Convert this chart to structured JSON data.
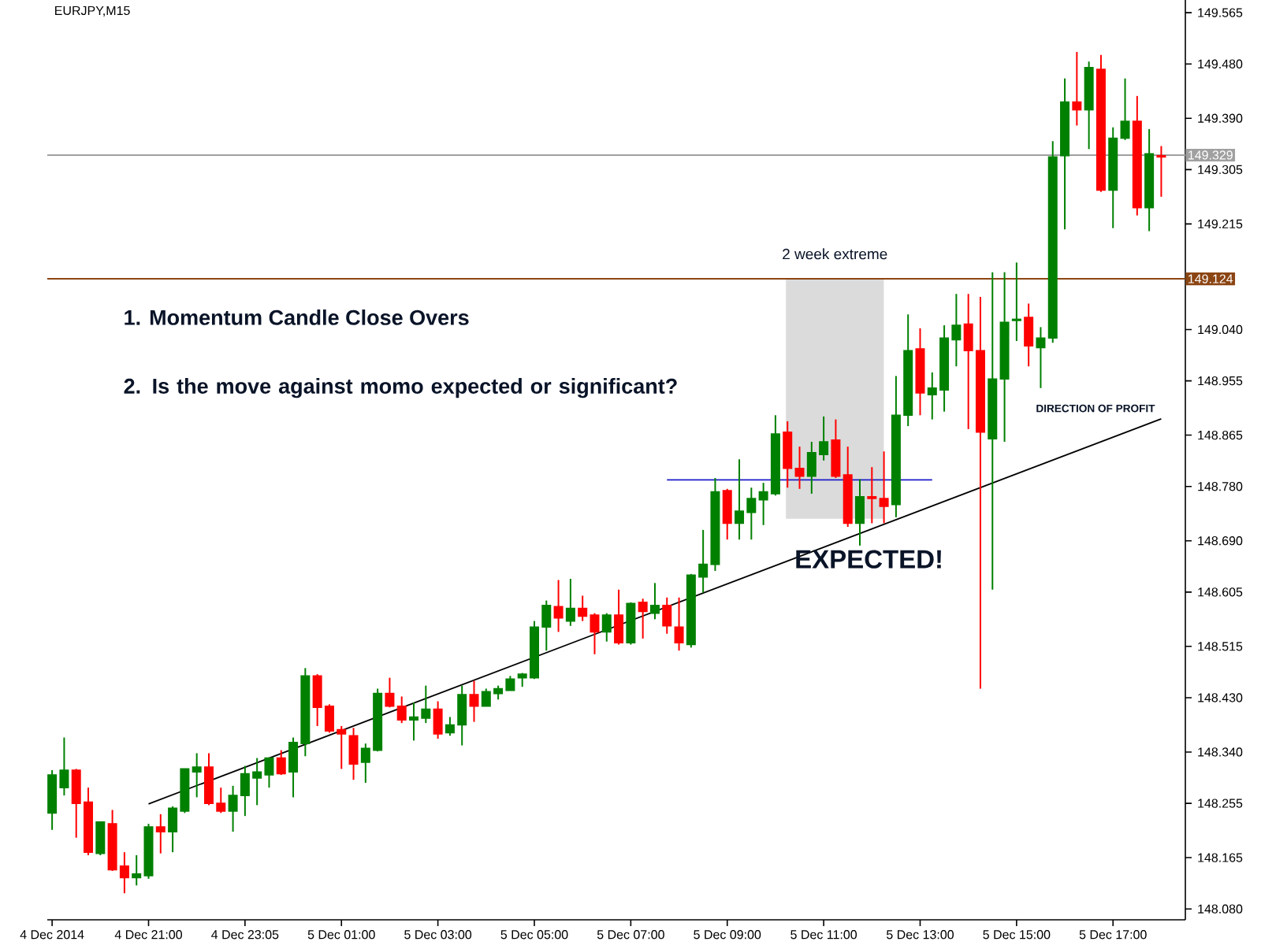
{
  "chart_data": {
    "type": "candlestick",
    "title": "EURJPY,M15",
    "categories": [
      "4 Dec 2014",
      null,
      null,
      null,
      null,
      null,
      null,
      null,
      "4 Dec 21:00",
      null,
      null,
      null,
      null,
      null,
      null,
      null,
      "4 Dec 23:05",
      null,
      null,
      null,
      null,
      null,
      null,
      null,
      "5 Dec 01:00",
      null,
      null,
      null,
      null,
      null,
      null,
      null,
      "5 Dec 03:00",
      null,
      null,
      null,
      null,
      null,
      null,
      null,
      "5 Dec 05:00",
      null,
      null,
      null,
      null,
      null,
      null,
      null,
      "5 Dec 07:00",
      null,
      null,
      null,
      null,
      null,
      null,
      null,
      "5 Dec 09:00",
      null,
      null,
      null,
      null,
      null,
      null,
      null,
      "5 Dec 11:00",
      null,
      null,
      null,
      null,
      null,
      null,
      null,
      "5 Dec 13:00",
      null,
      null,
      null,
      null,
      null,
      null,
      null,
      "5 Dec 15:00",
      null,
      null,
      null,
      null,
      null,
      null,
      null,
      "5 Dec 17:00",
      null,
      null,
      null,
      null
    ],
    "ohlc": [
      [
        148.239,
        148.31,
        148.211,
        148.302
      ],
      [
        148.281,
        148.364,
        148.268,
        148.31
      ],
      [
        148.31,
        148.312,
        148.198,
        148.255
      ],
      [
        148.257,
        148.281,
        148.169,
        148.174
      ],
      [
        148.172,
        148.224,
        148.169,
        148.224
      ],
      [
        148.221,
        148.244,
        148.143,
        148.145
      ],
      [
        148.151,
        148.174,
        148.106,
        148.132
      ],
      [
        148.132,
        148.169,
        148.119,
        148.138
      ],
      [
        148.135,
        148.221,
        148.13,
        148.216
      ],
      [
        148.216,
        148.237,
        148.172,
        148.208
      ],
      [
        148.208,
        148.25,
        148.174,
        148.247
      ],
      [
        148.242,
        148.312,
        148.239,
        148.312
      ],
      [
        148.307,
        148.338,
        148.265,
        148.315
      ],
      [
        148.315,
        148.338,
        148.252,
        148.255
      ],
      [
        148.255,
        148.281,
        148.239,
        148.242
      ],
      [
        148.242,
        148.284,
        148.208,
        148.268
      ],
      [
        148.268,
        148.317,
        148.234,
        148.304
      ],
      [
        148.297,
        148.33,
        148.252,
        148.307
      ],
      [
        148.302,
        148.33,
        148.281,
        148.33
      ],
      [
        148.33,
        148.343,
        148.302,
        148.304
      ],
      [
        148.307,
        148.364,
        148.265,
        148.356
      ],
      [
        148.354,
        148.479,
        148.333,
        148.466
      ],
      [
        148.466,
        148.469,
        148.383,
        148.414
      ],
      [
        148.416,
        148.419,
        148.372,
        148.375
      ],
      [
        148.377,
        148.383,
        148.312,
        148.37
      ],
      [
        148.367,
        148.38,
        148.294,
        148.32
      ],
      [
        148.323,
        148.354,
        148.289,
        148.346
      ],
      [
        148.343,
        148.445,
        148.341,
        148.437
      ],
      [
        148.437,
        148.463,
        148.414,
        148.416
      ],
      [
        148.416,
        148.432,
        148.388,
        148.393
      ],
      [
        148.393,
        148.422,
        148.359,
        148.398
      ],
      [
        148.396,
        148.45,
        148.388,
        148.411
      ],
      [
        148.411,
        148.424,
        148.362,
        148.37
      ],
      [
        148.372,
        148.398,
        148.367,
        148.385
      ],
      [
        148.385,
        148.45,
        148.351,
        148.435
      ],
      [
        148.435,
        148.458,
        148.39,
        148.416
      ],
      [
        148.416,
        148.445,
        148.416,
        148.44
      ],
      [
        148.437,
        148.45,
        148.427,
        148.445
      ],
      [
        148.442,
        148.466,
        148.442,
        148.461
      ],
      [
        148.463,
        148.471,
        148.448,
        148.469
      ],
      [
        148.463,
        148.557,
        148.461,
        148.547
      ],
      [
        148.547,
        148.591,
        148.508,
        148.583
      ],
      [
        148.581,
        148.625,
        148.539,
        148.562
      ],
      [
        148.557,
        148.627,
        148.549,
        148.578
      ],
      [
        148.578,
        148.599,
        148.557,
        148.565
      ],
      [
        148.567,
        148.57,
        148.502,
        148.539
      ],
      [
        148.539,
        148.57,
        148.523,
        148.567
      ],
      [
        148.567,
        148.609,
        148.518,
        148.521
      ],
      [
        148.521,
        148.588,
        148.518,
        148.586
      ],
      [
        148.588,
        148.594,
        148.528,
        148.573
      ],
      [
        148.57,
        148.62,
        148.56,
        148.583
      ],
      [
        148.583,
        148.596,
        148.536,
        148.549
      ],
      [
        148.547,
        148.596,
        148.508,
        148.521
      ],
      [
        148.518,
        148.635,
        148.513,
        148.633
      ],
      [
        148.63,
        148.708,
        148.604,
        148.651
      ],
      [
        148.651,
        148.794,
        148.64,
        148.771
      ],
      [
        148.773,
        148.776,
        148.692,
        148.719
      ],
      [
        148.719,
        148.825,
        148.692,
        148.739
      ],
      [
        148.737,
        148.778,
        148.692,
        148.76
      ],
      [
        148.758,
        148.786,
        148.716,
        148.771
      ],
      [
        148.768,
        148.898,
        148.765,
        148.867
      ],
      [
        148.87,
        148.888,
        148.778,
        148.81
      ],
      [
        148.81,
        148.846,
        148.776,
        148.797
      ],
      [
        148.797,
        148.854,
        148.768,
        148.836
      ],
      [
        148.833,
        148.896,
        148.823,
        148.854
      ],
      [
        148.857,
        148.891,
        148.794,
        148.797
      ],
      [
        148.799,
        148.846,
        148.713,
        148.719
      ],
      [
        148.719,
        148.792,
        148.682,
        148.763
      ],
      [
        148.763,
        148.812,
        148.719,
        148.76
      ],
      [
        148.76,
        148.838,
        148.719,
        148.747
      ],
      [
        148.75,
        148.963,
        148.729,
        148.898
      ],
      [
        148.898,
        149.065,
        148.88,
        149.005
      ],
      [
        149.008,
        149.042,
        148.898,
        148.935
      ],
      [
        148.932,
        148.969,
        148.891,
        148.943
      ],
      [
        148.94,
        149.047,
        148.904,
        149.026
      ],
      [
        149.023,
        149.099,
        148.979,
        149.047
      ],
      [
        149.049,
        149.099,
        148.875,
        149.005
      ],
      [
        149.005,
        149.094,
        148.445,
        148.87
      ],
      [
        148.859,
        149.135,
        148.609,
        148.958
      ],
      [
        148.958,
        149.135,
        148.854,
        149.052
      ],
      [
        149.055,
        149.151,
        149.021,
        149.057
      ],
      [
        149.06,
        149.083,
        148.979,
        149.013
      ],
      [
        149.01,
        149.044,
        148.943,
        149.026
      ],
      [
        149.026,
        149.352,
        149.018,
        149.326
      ],
      [
        149.328,
        149.456,
        149.206,
        149.417
      ],
      [
        149.417,
        149.5,
        149.378,
        149.404
      ],
      [
        149.404,
        149.484,
        149.339,
        149.474
      ],
      [
        149.471,
        149.495,
        149.268,
        149.271
      ],
      [
        149.271,
        149.375,
        149.208,
        149.357
      ],
      [
        149.357,
        149.456,
        149.354,
        149.385
      ],
      [
        149.385,
        149.427,
        149.229,
        149.242
      ],
      [
        149.242,
        149.372,
        149.203,
        149.331
      ],
      [
        149.328,
        149.344,
        149.26,
        149.326
      ]
    ],
    "colors": [
      "#008000",
      "#008000",
      "#ff0000",
      "#ff0000",
      "#008000",
      "#ff0000",
      "#ff0000",
      "#008000",
      "#008000",
      "#ff0000",
      "#008000",
      "#008000",
      "#008000",
      "#ff0000",
      "#ff0000",
      "#008000",
      "#008000",
      "#008000",
      "#008000",
      "#ff0000",
      "#008000",
      "#008000",
      "#ff0000",
      "#ff0000",
      "#ff0000",
      "#ff0000",
      "#008000",
      "#008000",
      "#ff0000",
      "#ff0000",
      "#008000",
      "#008000",
      "#ff0000",
      "#008000",
      "#008000",
      "#ff0000",
      "#008000",
      "#008000",
      "#008000",
      "#008000",
      "#008000",
      "#008000",
      "#ff0000",
      "#008000",
      "#ff0000",
      "#ff0000",
      "#008000",
      "#ff0000",
      "#008000",
      "#ff0000",
      "#008000",
      "#ff0000",
      "#ff0000",
      "#008000",
      "#008000",
      "#008000",
      "#ff0000",
      "#008000",
      "#008000",
      "#008000",
      "#008000",
      "#ff0000",
      "#ff0000",
      "#008000",
      "#008000",
      "#ff0000",
      "#ff0000",
      "#008000",
      "#ff0000",
      "#ff0000",
      "#008000",
      "#008000",
      "#ff0000",
      "#008000",
      "#008000",
      "#008000",
      "#ff0000",
      "#ff0000",
      "#008000",
      "#008000",
      "#008000",
      "#ff0000",
      "#008000",
      "#008000",
      "#008000",
      "#ff0000",
      "#008000",
      "#ff0000",
      "#008000",
      "#008000",
      "#ff0000",
      "#008000",
      "#ff0000"
    ],
    "series": [
      {
        "type": "line",
        "values": [
          null,
          null,
          null,
          null,
          null,
          null,
          null,
          null,
          148.254,
          null,
          null,
          null,
          null,
          null,
          null,
          null,
          null,
          null,
          null,
          null,
          null,
          null,
          null,
          null,
          null,
          null,
          null,
          null,
          null,
          null,
          null,
          null,
          null,
          null,
          null,
          null,
          null,
          null,
          null,
          null,
          null,
          null,
          null,
          null,
          null,
          null,
          null,
          null,
          null,
          null,
          null,
          null,
          null,
          null,
          null,
          null,
          null,
          null,
          null,
          null,
          null,
          null,
          null,
          null,
          null,
          null,
          null,
          null,
          null,
          null,
          null,
          null,
          null,
          null,
          null,
          null,
          null,
          null,
          null,
          null,
          null,
          null,
          null,
          null,
          null,
          null,
          null,
          null,
          null,
          null,
          null,
          null,
          148.892
        ],
        "color": "#000000"
      },
      {
        "type": "line",
        "values": [
          null,
          null,
          null,
          null,
          null,
          null,
          null,
          null,
          null,
          null,
          null,
          null,
          null,
          null,
          null,
          null,
          null,
          null,
          null,
          null,
          null,
          null,
          null,
          null,
          null,
          null,
          null,
          null,
          null,
          null,
          null,
          null,
          null,
          null,
          null,
          null,
          null,
          null,
          null,
          null,
          null,
          null,
          null,
          null,
          null,
          null,
          null,
          null,
          null,
          null,
          null,
          148.791,
          null,
          null,
          null,
          null,
          null,
          null,
          null,
          null,
          null,
          null,
          null,
          null,
          null,
          null,
          null,
          null,
          null,
          null,
          null,
          null,
          null,
          148.791,
          null,
          null,
          null,
          null,
          null,
          null,
          null,
          null,
          null,
          null,
          null,
          null,
          null,
          null,
          null,
          null,
          null,
          null,
          null
        ],
        "color": "#1c1cc8"
      }
    ],
    "ylim": [
      148.062,
      149.586
    ],
    "yticks": [
      149.565,
      {
        "value": 149.48,
        "label": "149.480"
      },
      {
        "value": 149.39,
        "label": "149.390"
      },
      149.305,
      149.215,
      {
        "value": 149.04,
        "label": "149.040"
      },
      148.955,
      148.865,
      {
        "value": 148.78,
        "label": "148.780"
      },
      {
        "value": 148.69,
        "label": "148.690"
      },
      148.605,
      148.515,
      {
        "value": 148.43,
        "label": "148.430"
      },
      {
        "value": 148.34,
        "label": "148.340"
      },
      148.255,
      148.165,
      {
        "value": 148.08,
        "label": "148.080"
      }
    ],
    "ref_lines": [
      {
        "axis": "y",
        "value": 149.329,
        "label": "149.329",
        "color": "#a0a0a0"
      },
      {
        "axis": "y",
        "value": 149.124,
        "label": "149.124",
        "color": "#8b4513"
      }
    ],
    "annotations": [
      "1. Momentum Candle Close Overs",
      "2. Is the move against momo expected or significant?",
      "EXPECTED!",
      "2 week extreme",
      "DIRECTION OF PROFIT"
    ]
  }
}
